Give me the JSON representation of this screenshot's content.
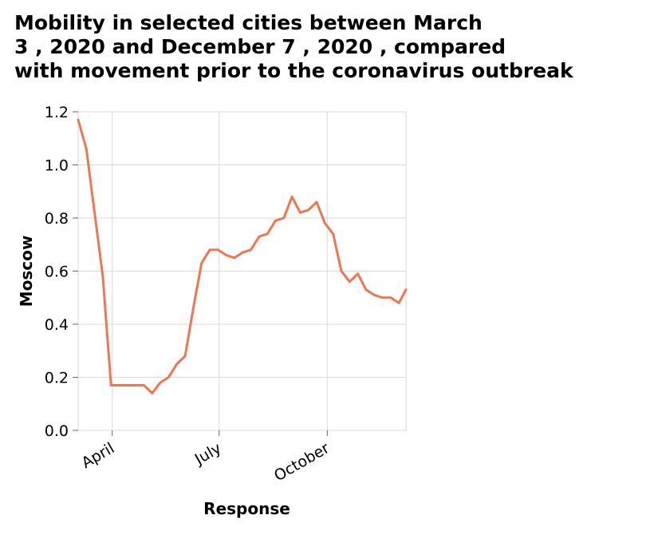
{
  "chart_data": {
    "type": "line",
    "title": "Mobility in selected cities between March\n3 , 2020 and December 7 , 2020 , compared\nwith movement prior to the coronavirus outbreak",
    "xlabel": "Response",
    "ylabel": "Moscow",
    "x_tick_labels": [
      "April",
      "July",
      "October"
    ],
    "x_tick_dates": [
      "2020-04-01",
      "2020-07-01",
      "2020-10-01"
    ],
    "xlim": [
      "2020-03-03",
      "2020-12-07"
    ],
    "ylim": [
      0,
      1.2
    ],
    "y_ticks": [
      "0.0",
      "0.2",
      "0.4",
      "0.6",
      "0.8",
      "1.0",
      "1.2"
    ],
    "grid": true,
    "line_color": "#ef7650",
    "series": [
      {
        "name": "",
        "x": [
          "2020-03-03",
          "2020-03-10",
          "2020-03-17",
          "2020-03-24",
          "2020-03-31",
          "2020-04-07",
          "2020-04-14",
          "2020-04-21",
          "2020-04-28",
          "2020-05-05",
          "2020-05-12",
          "2020-05-19",
          "2020-05-26",
          "2020-06-02",
          "2020-06-09",
          "2020-06-16",
          "2020-06-23",
          "2020-06-30",
          "2020-07-07",
          "2020-07-14",
          "2020-07-21",
          "2020-07-28",
          "2020-08-04",
          "2020-08-11",
          "2020-08-18",
          "2020-08-25",
          "2020-09-01",
          "2020-09-08",
          "2020-09-15",
          "2020-09-22",
          "2020-09-29",
          "2020-10-06",
          "2020-10-13",
          "2020-10-20",
          "2020-10-27",
          "2020-11-03",
          "2020-11-10",
          "2020-11-17",
          "2020-11-24",
          "2020-12-01",
          "2020-12-07"
        ],
        "values": [
          1.17,
          1.06,
          0.82,
          0.58,
          0.17,
          0.17,
          0.17,
          0.17,
          0.17,
          0.14,
          0.18,
          0.2,
          0.25,
          0.28,
          0.46,
          0.63,
          0.68,
          0.68,
          0.66,
          0.65,
          0.67,
          0.68,
          0.73,
          0.74,
          0.79,
          0.8,
          0.88,
          0.82,
          0.83,
          0.86,
          0.78,
          0.74,
          0.6,
          0.56,
          0.59,
          0.53,
          0.51,
          0.5,
          0.5,
          0.48,
          0.53
        ]
      }
    ]
  }
}
